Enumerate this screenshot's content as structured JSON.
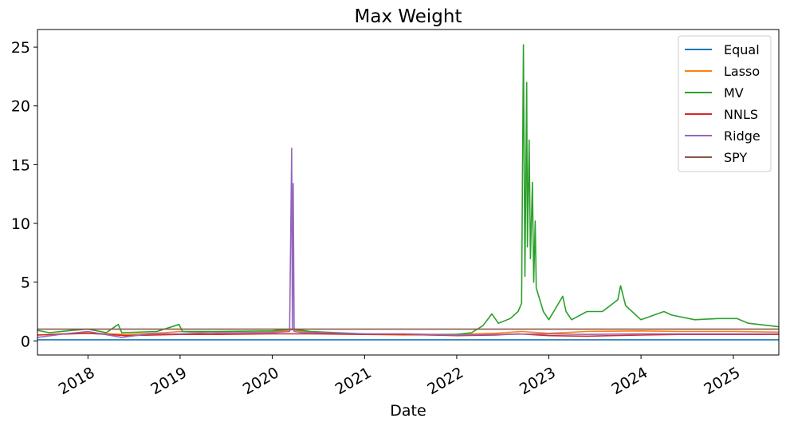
{
  "chart_data": {
    "type": "line",
    "title": "Max Weight",
    "xlabel": "Date",
    "ylabel": "",
    "ylim": [
      -1.2,
      26.5
    ],
    "xlim": [
      "2017-06-15",
      "2025-06-30"
    ],
    "grid": false,
    "legend_position": "top-right",
    "y_ticks": [
      0,
      5,
      10,
      15,
      20,
      25
    ],
    "x_ticks": [
      {
        "date": "2018-01-01",
        "label": "2018"
      },
      {
        "date": "2019-01-01",
        "label": "2019"
      },
      {
        "date": "2020-01-01",
        "label": "2020"
      },
      {
        "date": "2021-01-01",
        "label": "2021"
      },
      {
        "date": "2022-01-01",
        "label": "2022"
      },
      {
        "date": "2023-01-01",
        "label": "2023"
      },
      {
        "date": "2024-01-01",
        "label": "2024"
      },
      {
        "date": "2025-01-01",
        "label": "2025"
      }
    ],
    "series": [
      {
        "name": "Equal",
        "color": "#1f77b4",
        "points": [
          [
            "2017-06-15",
            0.1
          ],
          [
            "2025-06-30",
            0.1
          ]
        ]
      },
      {
        "name": "Lasso",
        "color": "#ff7f0e",
        "points": [
          [
            "2017-06-15",
            0.5
          ],
          [
            "2017-12-01",
            0.7
          ],
          [
            "2018-06-01",
            0.55
          ],
          [
            "2018-11-01",
            0.7
          ],
          [
            "2019-01-01",
            0.8
          ],
          [
            "2019-06-01",
            0.65
          ],
          [
            "2020-01-01",
            0.75
          ],
          [
            "2020-03-20",
            0.95
          ],
          [
            "2020-06-01",
            0.7
          ],
          [
            "2021-01-01",
            0.55
          ],
          [
            "2021-06-01",
            0.5
          ],
          [
            "2022-01-01",
            0.55
          ],
          [
            "2022-06-01",
            0.65
          ],
          [
            "2022-09-15",
            0.8
          ],
          [
            "2023-01-01",
            0.65
          ],
          [
            "2023-06-01",
            0.8
          ],
          [
            "2024-01-01",
            0.85
          ],
          [
            "2024-06-01",
            0.8
          ],
          [
            "2025-01-01",
            0.8
          ],
          [
            "2025-06-30",
            0.75
          ]
        ]
      },
      {
        "name": "MV",
        "color": "#2ca02c",
        "points": [
          [
            "2017-06-15",
            0.9
          ],
          [
            "2017-08-01",
            0.7
          ],
          [
            "2017-11-01",
            0.9
          ],
          [
            "2018-01-01",
            1.0
          ],
          [
            "2018-03-15",
            0.7
          ],
          [
            "2018-05-01",
            1.4
          ],
          [
            "2018-05-15",
            0.7
          ],
          [
            "2018-10-01",
            0.8
          ],
          [
            "2018-12-28",
            1.4
          ],
          [
            "2019-01-10",
            0.8
          ],
          [
            "2019-06-01",
            0.8
          ],
          [
            "2020-01-01",
            0.85
          ],
          [
            "2020-03-15",
            1.0
          ],
          [
            "2020-06-01",
            0.8
          ],
          [
            "2021-01-01",
            0.6
          ],
          [
            "2021-06-01",
            0.55
          ],
          [
            "2022-01-01",
            0.55
          ],
          [
            "2022-03-01",
            0.7
          ],
          [
            "2022-04-15",
            1.3
          ],
          [
            "2022-05-20",
            2.3
          ],
          [
            "2022-06-15",
            1.5
          ],
          [
            "2022-08-01",
            1.9
          ],
          [
            "2022-09-01",
            2.5
          ],
          [
            "2022-09-15",
            3.2
          ],
          [
            "2022-09-22",
            25.2
          ],
          [
            "2022-09-28",
            5.5
          ],
          [
            "2022-10-05",
            22.0
          ],
          [
            "2022-10-08",
            8.0
          ],
          [
            "2022-10-15",
            17.1
          ],
          [
            "2022-10-20",
            7.0
          ],
          [
            "2022-10-28",
            13.5
          ],
          [
            "2022-11-02",
            5.0
          ],
          [
            "2022-11-08",
            10.2
          ],
          [
            "2022-11-12",
            4.5
          ],
          [
            "2022-12-10",
            2.5
          ],
          [
            "2023-01-01",
            1.8
          ],
          [
            "2023-02-25",
            3.8
          ],
          [
            "2023-03-10",
            2.5
          ],
          [
            "2023-04-01",
            1.8
          ],
          [
            "2023-06-01",
            2.5
          ],
          [
            "2023-08-01",
            2.5
          ],
          [
            "2023-10-01",
            3.5
          ],
          [
            "2023-10-12",
            4.7
          ],
          [
            "2023-11-01",
            3.0
          ],
          [
            "2024-01-01",
            1.8
          ],
          [
            "2024-04-01",
            2.5
          ],
          [
            "2024-05-01",
            2.2
          ],
          [
            "2024-08-01",
            1.8
          ],
          [
            "2024-11-01",
            1.9
          ],
          [
            "2025-01-15",
            1.9
          ],
          [
            "2025-03-01",
            1.5
          ],
          [
            "2025-06-30",
            1.2
          ]
        ]
      },
      {
        "name": "NNLS",
        "color": "#d62728",
        "points": [
          [
            "2017-06-15",
            0.5
          ],
          [
            "2018-01-01",
            0.65
          ],
          [
            "2018-06-01",
            0.45
          ],
          [
            "2019-01-01",
            0.55
          ],
          [
            "2019-06-01",
            0.55
          ],
          [
            "2020-01-01",
            0.6
          ],
          [
            "2020-06-01",
            0.6
          ],
          [
            "2021-01-01",
            0.55
          ],
          [
            "2021-06-01",
            0.55
          ],
          [
            "2022-01-01",
            0.45
          ],
          [
            "2022-06-01",
            0.5
          ],
          [
            "2022-09-01",
            0.6
          ],
          [
            "2023-01-01",
            0.45
          ],
          [
            "2023-06-01",
            0.4
          ],
          [
            "2024-01-01",
            0.5
          ],
          [
            "2024-06-01",
            0.55
          ],
          [
            "2025-01-01",
            0.55
          ],
          [
            "2025-06-30",
            0.55
          ]
        ]
      },
      {
        "name": "Ridge",
        "color": "#9467bd",
        "points": [
          [
            "2017-06-15",
            0.3
          ],
          [
            "2017-10-01",
            0.6
          ],
          [
            "2018-01-01",
            0.8
          ],
          [
            "2018-05-15",
            0.3
          ],
          [
            "2018-09-01",
            0.6
          ],
          [
            "2019-01-01",
            0.6
          ],
          [
            "2019-06-01",
            0.7
          ],
          [
            "2020-01-01",
            0.7
          ],
          [
            "2020-03-10",
            0.8
          ],
          [
            "2020-03-18",
            16.4
          ],
          [
            "2020-03-21",
            1.0
          ],
          [
            "2020-03-24",
            13.4
          ],
          [
            "2020-03-28",
            0.8
          ],
          [
            "2020-05-01",
            0.7
          ],
          [
            "2020-08-01",
            0.7
          ],
          [
            "2021-01-01",
            0.6
          ],
          [
            "2021-06-01",
            0.6
          ],
          [
            "2022-01-01",
            0.5
          ],
          [
            "2022-06-01",
            0.55
          ],
          [
            "2023-01-01",
            0.6
          ],
          [
            "2023-06-01",
            0.55
          ],
          [
            "2024-01-01",
            0.6
          ],
          [
            "2024-06-01",
            0.6
          ],
          [
            "2025-01-01",
            0.6
          ],
          [
            "2025-06-30",
            0.6
          ]
        ]
      },
      {
        "name": "SPY",
        "color": "#8c564b",
        "points": [
          [
            "2017-06-15",
            1.0
          ],
          [
            "2025-06-30",
            1.0
          ]
        ]
      }
    ]
  }
}
